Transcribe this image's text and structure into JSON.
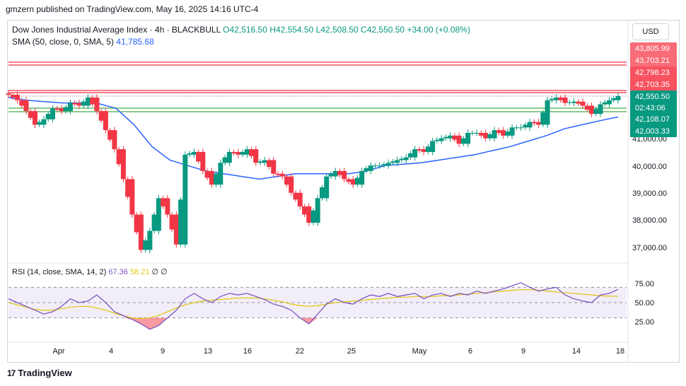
{
  "header": {
    "attribution": "gmzern published on TradingView.com, May 16, 2025 14:16 UTC-4"
  },
  "legend": {
    "symbol": "Dow Jones Industrial Average Index · 4h · BLACKBULL",
    "open": "O42,516.50",
    "high": "H42,554.50",
    "low": "L42,508.50",
    "close": "C42,550.50",
    "change": "+34.00 (+0.08%)",
    "sma_label": "SMA (50, close, 0, SMA, 5)",
    "sma_value": "41,785.68",
    "rsi_label": "RSI (14, close, SMA, 14, 2)",
    "rsi_value": "67.36",
    "rsi_sma_value": "58.21",
    "rsi_extra": "∅ ∅"
  },
  "currency_button": "USD",
  "footer": {
    "brand": "TradingView",
    "logo": "17"
  },
  "colors": {
    "up": "#089981",
    "down": "#f23645",
    "sma": "#2962ff",
    "rsi": "#7e57c2",
    "rsi_sma": "#e2c71f",
    "resistance": "#f23645",
    "support": "#4caf50"
  },
  "chart_data": {
    "type": "candlestick",
    "timeframe": "4h",
    "x_tick_labels": [
      "Apr",
      "4",
      "9",
      "13",
      "16",
      "22",
      "25",
      "May",
      "6",
      "9",
      "14",
      "18"
    ],
    "y_tick_labels": [
      "41,000.00",
      "40,000.00",
      "39,000.00",
      "38,000.00",
      "37,000.00"
    ],
    "price_badges": [
      {
        "value": "43,805.99",
        "kind": "resistance"
      },
      {
        "value": "43,703.21",
        "kind": "resistance"
      },
      {
        "value": "42,798.23",
        "kind": "resistance"
      },
      {
        "value": "42,703.35",
        "kind": "resistance"
      },
      {
        "value": "42,550.50",
        "kind": "last"
      },
      {
        "value": "02:43:06",
        "kind": "countdown"
      },
      {
        "value": "42,108.07",
        "kind": "support"
      },
      {
        "value": "42,003.33",
        "kind": "support"
      }
    ],
    "levels": [
      {
        "value": 43805.99,
        "kind": "resistance"
      },
      {
        "value": 43703.21,
        "kind": "resistance"
      },
      {
        "value": 42798.23,
        "kind": "resistance"
      },
      {
        "value": 42703.35,
        "kind": "resistance"
      },
      {
        "value": 42108.07,
        "kind": "support"
      },
      {
        "value": 42003.33,
        "kind": "support"
      }
    ],
    "last_price": 42550.5,
    "y_range": [
      36600,
      44500
    ],
    "price_path": [
      42600,
      42400,
      42000,
      41500,
      41700,
      42100,
      42000,
      42300,
      42200,
      42500,
      42000,
      41300,
      40600,
      39500,
      38200,
      36900,
      37600,
      38800,
      38200,
      37100,
      40400,
      40500,
      39800,
      39300,
      40100,
      40500,
      40400,
      40600,
      40100,
      40200,
      39700,
      39600,
      39000,
      38500,
      37900,
      38800,
      39600,
      39800,
      39500,
      39300,
      39800,
      40000,
      40000,
      40100,
      40200,
      40300,
      40600,
      40500,
      40900,
      41000,
      41100,
      40800,
      41200,
      41200,
      41000,
      41300,
      41100,
      41400,
      41400,
      41600,
      41500,
      42400,
      42500,
      42300,
      42350,
      42200,
      41900,
      42250,
      42400,
      42550.5
    ],
    "sma_path": [
      42500,
      42400,
      42350,
      42300,
      42300,
      42280,
      42100,
      41500,
      40700,
      40200,
      40000,
      39800,
      39700,
      39600,
      39500,
      39600,
      39700,
      39700,
      39700,
      39700,
      39800,
      40000,
      40050,
      40100,
      40200,
      40300,
      40400,
      40550,
      40700,
      40900,
      41100,
      41350,
      41500,
      41650,
      41785.68
    ],
    "rsi": {
      "y_tick_labels": [
        "75.00",
        "50.00",
        "25.00"
      ],
      "y_range": [
        0,
        100
      ],
      "upper_band": 70,
      "lower_band": 30,
      "rsi_path": [
        55,
        50,
        45,
        40,
        35,
        38,
        45,
        55,
        50,
        52,
        60,
        50,
        38,
        33,
        28,
        22,
        15,
        20,
        30,
        40,
        55,
        62,
        55,
        50,
        58,
        62,
        60,
        62,
        58,
        54,
        48,
        45,
        40,
        30,
        22,
        35,
        48,
        55,
        50,
        48,
        55,
        60,
        58,
        62,
        58,
        60,
        62,
        55,
        60,
        62,
        58,
        62,
        60,
        65,
        62,
        65,
        68,
        72,
        76,
        70,
        65,
        68,
        70,
        60,
        55,
        52,
        50,
        60,
        62,
        67.36
      ],
      "rsi_sma_path": [
        50,
        47,
        44,
        41,
        40,
        40,
        42,
        44,
        45,
        45,
        43,
        40,
        36,
        33,
        30,
        29,
        30,
        33,
        38,
        43,
        47,
        50,
        52,
        53,
        54,
        55,
        56,
        56,
        56,
        55,
        53,
        51,
        48,
        46,
        45,
        46,
        48,
        50,
        51,
        52,
        53,
        54,
        55,
        56,
        57,
        57,
        58,
        58,
        58,
        59,
        59,
        60,
        61,
        62,
        63,
        64,
        65,
        66,
        67,
        67,
        66,
        65,
        64,
        63,
        62,
        61,
        60,
        59,
        58.5,
        58.21
      ]
    }
  }
}
